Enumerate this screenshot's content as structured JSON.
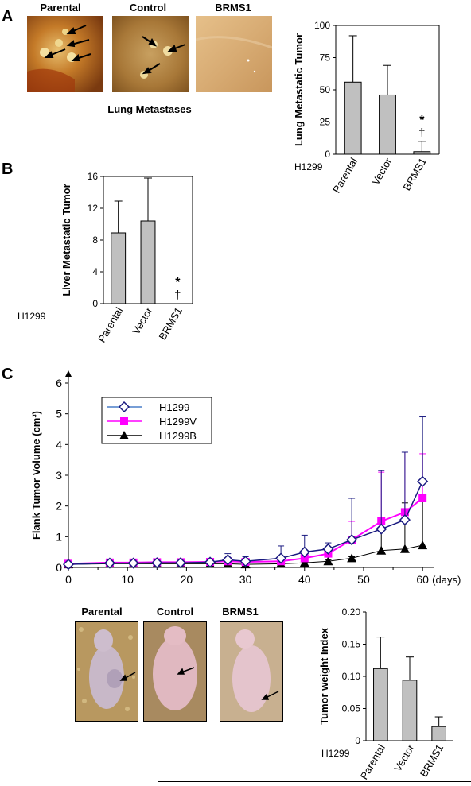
{
  "panels": {
    "a": "A",
    "b": "B",
    "c": "C"
  },
  "lung_photos": {
    "labels": [
      "Parental",
      "Control",
      "BRMS1"
    ],
    "caption": "Lung Metastases"
  },
  "mouse_photos": {
    "labels": [
      "Parental",
      "Control",
      "BRMS1"
    ]
  },
  "colors": {
    "bar_fill": "#c0c0c0",
    "h1299": "#4a7ec8",
    "h1299v": "#ff00ff",
    "h1299b": "#000000",
    "h1299_marker": "#1a1a80"
  },
  "chart_data": [
    {
      "id": "lung",
      "type": "bar",
      "categories": [
        "Parental",
        "Vector",
        "BRMS1"
      ],
      "values": [
        56,
        46,
        2
      ],
      "errors": [
        36,
        23,
        8
      ],
      "ylabel": "Lung Metastatic Tumor",
      "ylim": [
        0,
        100
      ],
      "yticks": [
        "0",
        "25",
        "50",
        "75",
        "100"
      ],
      "group_label": "H1299",
      "annotation": {
        "category": "BRMS1",
        "symbols": [
          "*",
          "†"
        ]
      }
    },
    {
      "id": "liver",
      "type": "bar",
      "categories": [
        "Parental",
        "Vector",
        "BRMS1"
      ],
      "values": [
        8.9,
        10.4,
        0
      ],
      "errors": [
        4.0,
        5.4,
        0
      ],
      "ylabel": "Liver Metastatic Tumor",
      "ylim": [
        0,
        16
      ],
      "yticks": [
        "0",
        "4",
        "8",
        "12",
        "16"
      ],
      "group_label": "H1299",
      "annotation": {
        "category": "BRMS1",
        "symbols": [
          "*",
          "†"
        ]
      }
    },
    {
      "id": "flank",
      "type": "line",
      "ylabel": "Flank Tumor Volume (cm³)",
      "xunit": "(days)",
      "xlim": [
        0,
        62
      ],
      "ylim": [
        0,
        6
      ],
      "xticks": [
        "0",
        "10",
        "20",
        "30",
        "40",
        "50",
        "60"
      ],
      "yticks": [
        "0",
        "1",
        "2",
        "3",
        "4",
        "5",
        "6"
      ],
      "legend_position": "top-left",
      "series": [
        {
          "name": "H1299",
          "x": [
            0,
            7,
            11,
            15,
            19,
            24,
            27,
            30,
            36,
            40,
            44,
            48,
            53,
            57,
            60
          ],
          "y": [
            0.1,
            0.14,
            0.14,
            0.15,
            0.15,
            0.17,
            0.25,
            0.2,
            0.3,
            0.5,
            0.6,
            0.9,
            1.25,
            1.55,
            2.8
          ],
          "err": [
            0.05,
            0.05,
            0.05,
            0.06,
            0.06,
            0.07,
            0.2,
            0.15,
            0.4,
            0.55,
            0.2,
            1.35,
            1.9,
            2.2,
            2.1
          ]
        },
        {
          "name": "H1299V",
          "x": [
            0,
            7,
            11,
            15,
            19,
            24,
            27,
            30,
            36,
            40,
            44,
            48,
            53,
            57,
            60
          ],
          "y": [
            0.12,
            0.16,
            0.16,
            0.17,
            0.17,
            0.18,
            0.2,
            0.18,
            0.2,
            0.3,
            0.45,
            0.9,
            1.5,
            1.8,
            2.25
          ],
          "err": [
            0.05,
            0.05,
            0.05,
            0.06,
            0.06,
            0.06,
            0.1,
            0.1,
            0.1,
            0.15,
            0.2,
            0.6,
            1.6,
            1.95,
            1.45
          ]
        },
        {
          "name": "H1299B",
          "x": [
            0,
            7,
            11,
            15,
            19,
            24,
            27,
            30,
            36,
            40,
            44,
            48,
            53,
            57,
            60
          ],
          "y": [
            0.1,
            0.12,
            0.12,
            0.12,
            0.12,
            0.12,
            0.12,
            0.1,
            0.12,
            0.15,
            0.2,
            0.3,
            0.55,
            0.6,
            0.72
          ],
          "err": [
            0.02,
            0.02,
            0.02,
            0.02,
            0.02,
            0.02,
            0.02,
            0.02,
            0.03,
            0.03,
            0.05,
            0.05,
            1.0,
            1.5,
            1.55
          ]
        }
      ]
    },
    {
      "id": "weight",
      "type": "bar",
      "categories": [
        "Parental",
        "Vector",
        "BRMS1"
      ],
      "values": [
        0.112,
        0.094,
        0.022
      ],
      "errors": [
        0.049,
        0.036,
        0.015
      ],
      "ylabel": "Tumor weight Index",
      "ylim": [
        0,
        0.2
      ],
      "yticks": [
        "0",
        "0.05",
        "0.10",
        "0.15",
        "0.20"
      ],
      "group_label": "H1299"
    }
  ]
}
